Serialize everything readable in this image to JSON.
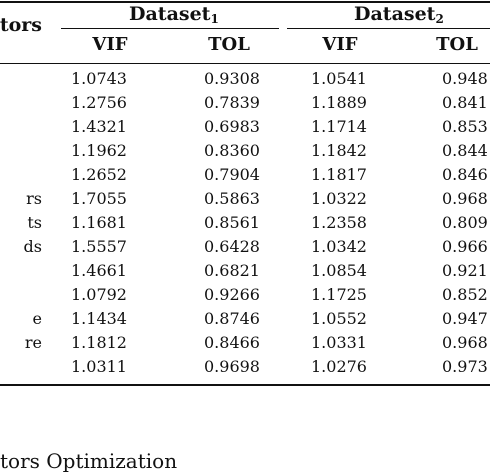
{
  "table": {
    "stub_header": "tors",
    "groups": [
      {
        "name": "Dataset",
        "sub": "1"
      },
      {
        "name": "Dataset",
        "sub": "2"
      }
    ],
    "columns": [
      "VIF",
      "TOL",
      "VIF",
      "TOL"
    ],
    "rows": [
      {
        "label": "",
        "values": [
          "1.0743",
          "0.9308",
          "1.0541",
          "0.948"
        ]
      },
      {
        "label": "",
        "values": [
          "1.2756",
          "0.7839",
          "1.1889",
          "0.841"
        ]
      },
      {
        "label": "",
        "values": [
          "1.4321",
          "0.6983",
          "1.1714",
          "0.853"
        ]
      },
      {
        "label": "",
        "values": [
          "1.1962",
          "0.8360",
          "1.1842",
          "0.844"
        ]
      },
      {
        "label": "",
        "values": [
          "1.2652",
          "0.7904",
          "1.1817",
          "0.846"
        ]
      },
      {
        "label": "rs",
        "values": [
          "1.7055",
          "0.5863",
          "1.0322",
          "0.968"
        ]
      },
      {
        "label": "ts",
        "values": [
          "1.1681",
          "0.8561",
          "1.2358",
          "0.809"
        ]
      },
      {
        "label": "ds",
        "values": [
          "1.5557",
          "0.6428",
          "1.0342",
          "0.966"
        ]
      },
      {
        "label": "",
        "values": [
          "1.4661",
          "0.6821",
          "1.0854",
          "0.921"
        ]
      },
      {
        "label": "",
        "values": [
          "1.0792",
          "0.9266",
          "1.1725",
          "0.852"
        ]
      },
      {
        "label": "e",
        "values": [
          "1.1434",
          "0.8746",
          "1.0552",
          "0.947"
        ]
      },
      {
        "label": "re",
        "values": [
          "1.1812",
          "0.8466",
          "1.0331",
          "0.968"
        ]
      },
      {
        "label": "",
        "values": [
          "1.0311",
          "0.9698",
          "1.0276",
          "0.973"
        ]
      }
    ]
  },
  "caption": "tors Optimization"
}
